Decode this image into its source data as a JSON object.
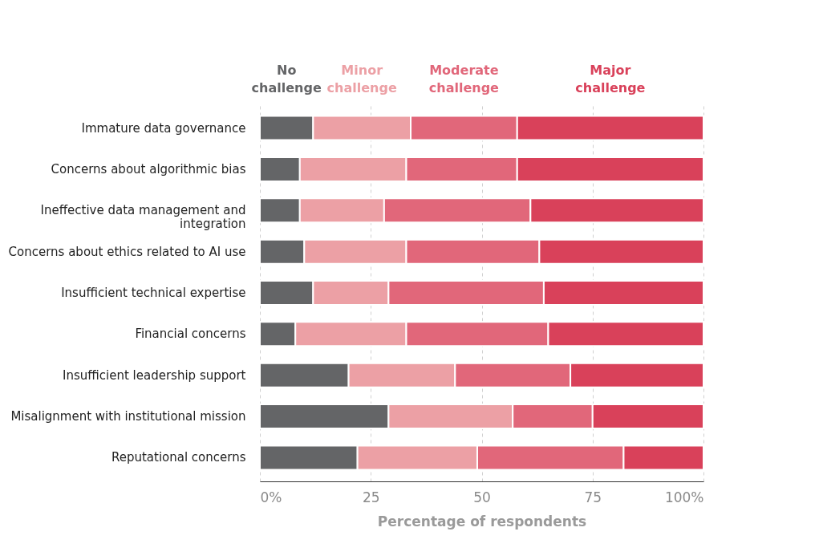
{
  "chart_data": {
    "type": "bar",
    "orientation": "horizontal",
    "stacked": true,
    "xlabel": "Percentage of respondents",
    "categories": [
      "Immature data governance",
      "Concerns about algorithmic bias",
      "Ineffective data management and integration",
      "Concerns about ethics related to AI use",
      "Insufficient technical expertise",
      "Financial concerns",
      "Insufficient leadership support",
      "Misalignment with institutional mission",
      "Reputational concerns"
    ],
    "series": [
      {
        "name": "No challenge",
        "color": "#646567",
        "values": [
          12,
          9,
          9,
          10,
          12,
          8,
          20,
          29,
          22
        ]
      },
      {
        "name": "Minor challenge",
        "color": "#eca0a5",
        "values": [
          22,
          24,
          19,
          23,
          17,
          25,
          24,
          28,
          27
        ]
      },
      {
        "name": "Moderate challenge",
        "color": "#e1677a",
        "values": [
          24,
          25,
          33,
          30,
          35,
          32,
          26,
          18,
          33
        ]
      },
      {
        "name": "Major challenge",
        "color": "#d9415a",
        "values": [
          42,
          42,
          39,
          37,
          36,
          35,
          30,
          25,
          18
        ]
      }
    ],
    "xlim": [
      0,
      100
    ],
    "xticks": [
      {
        "value": 0,
        "label": "0%"
      },
      25,
      50,
      75,
      {
        "value": 100,
        "label": "100%"
      }
    ],
    "grid": "x",
    "legend": "top"
  }
}
